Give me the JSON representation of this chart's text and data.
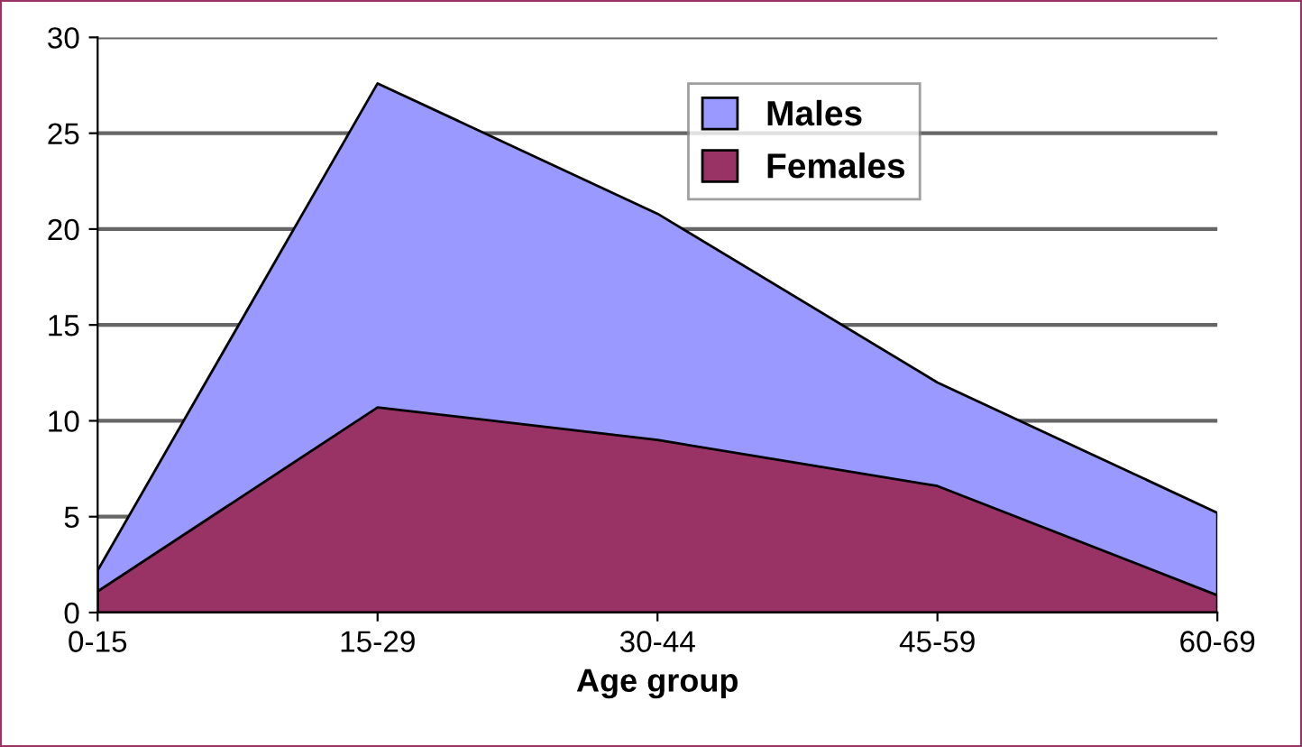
{
  "chart_data": {
    "type": "area",
    "xlabel": "Age group",
    "categories": [
      "0-15",
      "15-29",
      "30-44",
      "45-59",
      "60-69"
    ],
    "series": [
      {
        "name": "Males",
        "color": "#9999ff",
        "values": [
          2.2,
          27.6,
          20.8,
          12,
          5.2
        ]
      },
      {
        "name": "Females",
        "color": "#993366",
        "values": [
          1.1,
          10.7,
          9,
          6.6,
          0.9
        ]
      }
    ],
    "ylim": [
      0,
      30
    ],
    "yticks": [
      0,
      5,
      10,
      15,
      20,
      25,
      30
    ],
    "grid": "y",
    "legend": "top right"
  }
}
